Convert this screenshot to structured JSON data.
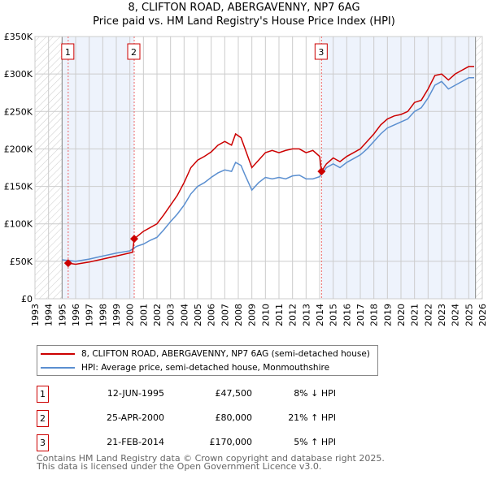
{
  "chart_data": {
    "type": "line",
    "title": "8, CLIFTON ROAD, ABERGAVENNY, NP7 6AG",
    "subtitle": "Price paid vs. HM Land Registry's House Price Index (HPI)",
    "xlim": [
      1993,
      2026
    ],
    "ylim": [
      0,
      350000
    ],
    "yticks": [
      {
        "v": 0,
        "label": "£0"
      },
      {
        "v": 50000,
        "label": "£50K"
      },
      {
        "v": 100000,
        "label": "£100K"
      },
      {
        "v": 150000,
        "label": "£150K"
      },
      {
        "v": 200000,
        "label": "£200K"
      },
      {
        "v": 250000,
        "label": "£250K"
      },
      {
        "v": 300000,
        "label": "£300K"
      },
      {
        "v": 350000,
        "label": "£350K"
      }
    ],
    "xticks": [
      "1993",
      "1994",
      "1995",
      "1996",
      "1997",
      "1998",
      "1999",
      "2000",
      "2001",
      "2002",
      "2003",
      "2004",
      "2005",
      "2006",
      "2007",
      "2008",
      "2009",
      "2010",
      "2011",
      "2012",
      "2013",
      "2014",
      "2015",
      "2016",
      "2017",
      "2018",
      "2019",
      "2020",
      "2021",
      "2022",
      "2023",
      "2024",
      "2025",
      "2026"
    ],
    "grid": true,
    "series": [
      {
        "name": "8, CLIFTON ROAD, ABERGAVENNY, NP7 6AG (semi-detached house)",
        "color": "#cc0000",
        "x": [
          1995.45,
          1996,
          1997,
          1998,
          1999,
          2000.2,
          2000.32,
          2001,
          2002,
          2002.5,
          2003,
          2003.5,
          2004,
          2004.5,
          2005,
          2005.5,
          2006,
          2006.5,
          2007,
          2007.5,
          2007.8,
          2008.2,
          2008.5,
          2009,
          2009.5,
          2010,
          2010.5,
          2011,
          2011.5,
          2012,
          2012.5,
          2013,
          2013.5,
          2014,
          2014.14,
          2014.5,
          2015,
          2015.5,
          2016,
          2016.5,
          2017,
          2017.5,
          2018,
          2018.5,
          2019,
          2019.5,
          2020,
          2020.5,
          2021,
          2021.5,
          2022,
          2022.5,
          2023,
          2023.5,
          2024,
          2024.5,
          2025,
          2025.4
        ],
        "y": [
          47500,
          46000,
          49000,
          53000,
          57000,
          62000,
          80000,
          90000,
          100000,
          112000,
          125000,
          138000,
          155000,
          175000,
          185000,
          190000,
          196000,
          205000,
          210000,
          205000,
          220000,
          215000,
          200000,
          175000,
          185000,
          195000,
          198000,
          195000,
          198000,
          200000,
          200000,
          195000,
          198000,
          190000,
          170000,
          180000,
          188000,
          183000,
          190000,
          195000,
          200000,
          210000,
          220000,
          232000,
          240000,
          244000,
          246000,
          250000,
          262000,
          265000,
          280000,
          298000,
          300000,
          292000,
          300000,
          305000,
          310000,
          310000
        ]
      },
      {
        "name": "HPI: Average price, semi-detached house, Monmouthshire",
        "color": "#5b8fd0",
        "x": [
          1995,
          1996,
          1997,
          1998,
          1999,
          2000,
          2000.5,
          2001,
          2001.5,
          2002,
          2002.5,
          2003,
          2003.5,
          2004,
          2004.5,
          2005,
          2005.5,
          2006,
          2006.5,
          2007,
          2007.5,
          2007.8,
          2008.2,
          2008.5,
          2009,
          2009.5,
          2010,
          2010.5,
          2011,
          2011.5,
          2012,
          2012.5,
          2013,
          2013.5,
          2014,
          2014.5,
          2015,
          2015.5,
          2016,
          2016.5,
          2017,
          2017.5,
          2018,
          2018.5,
          2019,
          2019.5,
          2020,
          2020.5,
          2021,
          2021.5,
          2022,
          2022.5,
          2023,
          2023.5,
          2024,
          2024.5,
          2025,
          2025.4
        ],
        "y": [
          52000,
          50000,
          53000,
          57000,
          61000,
          64000,
          70000,
          73000,
          78000,
          82000,
          92000,
          103000,
          113000,
          125000,
          140000,
          150000,
          155000,
          162000,
          168000,
          172000,
          170000,
          182000,
          178000,
          165000,
          145000,
          155000,
          162000,
          160000,
          162000,
          160000,
          164000,
          165000,
          160000,
          160000,
          163000,
          175000,
          180000,
          175000,
          182000,
          187000,
          192000,
          200000,
          210000,
          220000,
          228000,
          232000,
          236000,
          240000,
          250000,
          255000,
          268000,
          285000,
          290000,
          280000,
          285000,
          290000,
          295000,
          295000
        ]
      }
    ],
    "sales": [
      {
        "label": "1",
        "date": "12-JUN-1995",
        "x": 1995.45,
        "price": 47500,
        "price_text": "£47,500",
        "hpi": "8% ↓ HPI"
      },
      {
        "label": "2",
        "date": "25-APR-2000",
        "x": 2000.32,
        "price": 80000,
        "price_text": "£80,000",
        "hpi": "21% ↑ HPI"
      },
      {
        "label": "3",
        "date": "21-FEB-2014",
        "x": 2014.14,
        "price": 170000,
        "price_text": "£170,000",
        "hpi": "5% ↑ HPI"
      }
    ]
  },
  "footer": {
    "line1": "Contains HM Land Registry data © Crown copyright and database right 2025.",
    "line2": "This data is licensed under the Open Government Licence v3.0."
  }
}
